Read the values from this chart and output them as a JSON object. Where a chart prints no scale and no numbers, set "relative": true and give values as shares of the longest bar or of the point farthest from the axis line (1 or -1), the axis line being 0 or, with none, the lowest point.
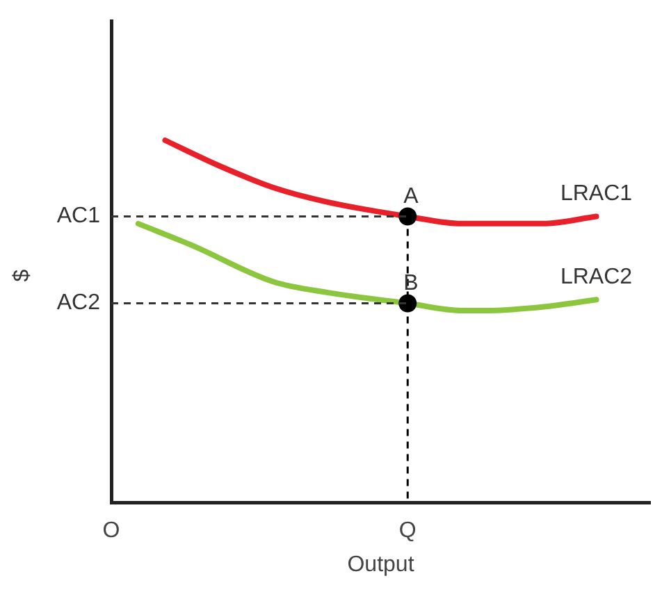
{
  "chart_data": {
    "type": "line",
    "relative": true,
    "xlabel": "Output",
    "ylabel": "$",
    "legend": false,
    "grid": false,
    "marker": "none",
    "tick_labels": "x",
    "categories": [
      "O",
      null,
      null,
      null,
      null,
      null,
      null,
      null,
      null,
      null,
      null,
      "Q",
      null,
      null,
      null,
      null,
      null,
      null,
      null,
      null,
      null
    ],
    "series": [
      {
        "name": "LRAC1",
        "color": "#e8202a",
        "values": [
          null,
          null,
          1.0,
          null,
          0.93,
          null,
          0.87,
          null,
          0.83,
          null,
          null,
          0.79,
          null,
          0.77,
          0.77,
          null,
          0.77,
          null,
          0.79,
          null,
          null
        ]
      },
      {
        "name": "LRAC2",
        "color": "#8cc63f",
        "values": [
          null,
          0.77,
          null,
          0.71,
          null,
          null,
          0.61,
          null,
          0.58,
          null,
          null,
          0.55,
          null,
          0.53,
          0.53,
          null,
          0.54,
          null,
          0.56,
          null,
          null
        ]
      },
      {
        "type": "scatter",
        "color": "#000000",
        "marker": "circle",
        "x": [
          "Q",
          "Q"
        ],
        "values": [
          0.79,
          0.55
        ]
      }
    ],
    "ref_lines": [
      {
        "axis": "y",
        "value": 0.79,
        "label": "AC1",
        "line_style": "dashed",
        "color": "#333333"
      },
      {
        "axis": "y",
        "value": 0.55,
        "label": "AC2",
        "line_style": "dashed",
        "color": "#333333"
      },
      {
        "axis": "x",
        "value": "Q",
        "line_style": "dashed",
        "color": "#000000"
      }
    ],
    "annotations": [
      {
        "text": "A",
        "x": "Q",
        "y": 0.79
      },
      {
        "text": "B",
        "x": "Q",
        "y": 0.55
      }
    ]
  }
}
